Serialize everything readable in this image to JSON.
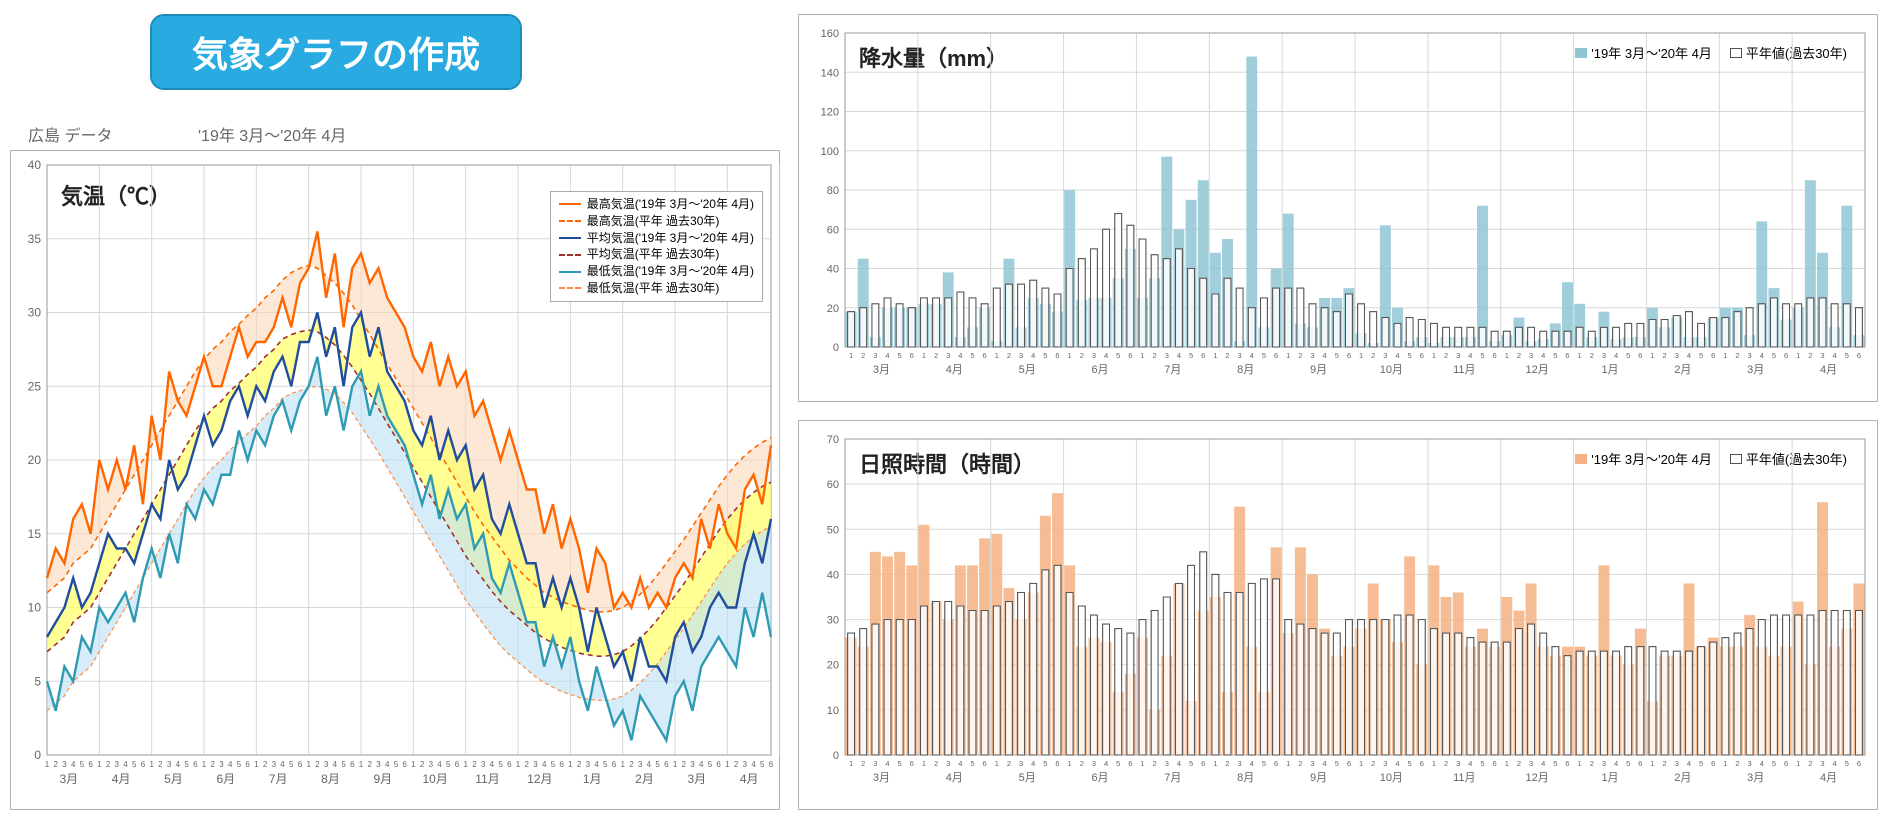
{
  "title_badge": "気象グラフの作成",
  "data_source": "広島 データ",
  "period": "'19年  3月～'20年  4月",
  "months": [
    "3月",
    "4月",
    "5月",
    "6月",
    "7月",
    "8月",
    "9月",
    "10月",
    "11月",
    "12月",
    "1月",
    "2月",
    "3月",
    "4月"
  ],
  "sub_ticks": [
    "1",
    "2",
    "3",
    "4",
    "5",
    "6"
  ],
  "temp_chart": {
    "type": "line",
    "title": "気温（℃）",
    "ylim": [
      0,
      40
    ],
    "ytick_step": 5,
    "background": "#ffffff",
    "grid_color": "#d8d8d8",
    "axis_color": "#808080",
    "tick_font_size": 10,
    "fill_above_avg_color": "#ffff66",
    "fill_above_avg_opacity": 0.7,
    "fill_below_low_color": "#bcdff5",
    "fill_below_low_opacity": 0.6,
    "fill_max_gap_color": "#fcd5b4",
    "fill_max_gap_opacity": 0.55,
    "series": {
      "max_cur": {
        "color": "#ff6600",
        "width": 2.4,
        "dash": "none",
        "label": "最高気温('19年  3月～'20年  4月)"
      },
      "max_norm": {
        "color": "#ff6600",
        "width": 1.6,
        "dash": "5,4",
        "label": "最高気温(平年  過去30年)"
      },
      "avg_cur": {
        "color": "#1f4e9c",
        "width": 2.4,
        "dash": "none",
        "label": "平均気温('19年  3月～'20年  4月)"
      },
      "avg_norm": {
        "color": "#a03030",
        "width": 1.6,
        "dash": "5,4",
        "label": "平均気温(平年  過去30年)"
      },
      "low_cur": {
        "color": "#2e9bb3",
        "width": 2.4,
        "dash": "none",
        "label": "最低気温('19年  3月～'20年  4月)"
      },
      "low_norm": {
        "color": "#ff8c42",
        "width": 1.2,
        "dash": "4,3",
        "label": "最低気温(平年  過去30年)"
      }
    },
    "data": {
      "max_cur": [
        12,
        14,
        13,
        16,
        17,
        15,
        20,
        18,
        20,
        18,
        21,
        17,
        23,
        20,
        26,
        24,
        23,
        25,
        27,
        25,
        25,
        27,
        29,
        27,
        28,
        28,
        29,
        31,
        29,
        32,
        33,
        35.5,
        31,
        34,
        29,
        33,
        34,
        32,
        33,
        31,
        30,
        29,
        27,
        26,
        28,
        25,
        27,
        25,
        26,
        23,
        24,
        22,
        20,
        22,
        20,
        18,
        18,
        15,
        17,
        14,
        16,
        14,
        11,
        14,
        13,
        10,
        11,
        10,
        12,
        10,
        11,
        10,
        12,
        13,
        12,
        16,
        14,
        17,
        15,
        14,
        18,
        19,
        17,
        21
      ],
      "max_norm": [
        11,
        11.5,
        12,
        13,
        13.5,
        14,
        15,
        16,
        17,
        18,
        19,
        20,
        21,
        22,
        23,
        24,
        25,
        26,
        26.8,
        27.5,
        28,
        28.7,
        29.2,
        29.8,
        30.3,
        31,
        31.5,
        32.2,
        32.7,
        33,
        33.2,
        33,
        32.5,
        32,
        31.3,
        30.5,
        29.5,
        28.5,
        27.5,
        26.5,
        25.5,
        24.5,
        23.5,
        22.5,
        21.5,
        20.5,
        19.5,
        18.5,
        17.5,
        16.5,
        15.6,
        14.8,
        14,
        13.2,
        12.6,
        12,
        11.5,
        11,
        10.7,
        10.4,
        10.2,
        10,
        9.8,
        9.7,
        9.7,
        9.8,
        10,
        10.4,
        10.9,
        11.5,
        12.2,
        13,
        13.8,
        14.6,
        15.5,
        16.4,
        17.3,
        18.2,
        19,
        19.7,
        20.3,
        20.8,
        21.2,
        21.5
      ],
      "avg_cur": [
        8,
        9,
        10,
        12,
        10,
        11,
        13,
        15,
        14,
        14,
        13,
        15,
        17,
        16,
        20,
        18,
        19,
        21,
        23,
        21,
        22,
        24,
        25,
        23,
        25,
        24,
        26,
        27,
        25,
        28,
        28,
        30,
        27,
        29,
        25,
        29,
        30,
        27,
        29,
        26,
        25,
        24,
        22,
        21,
        23,
        20,
        22,
        20,
        21,
        18,
        19,
        16,
        15,
        17,
        15,
        13,
        13,
        10,
        12,
        10,
        12,
        10,
        7,
        10,
        8,
        6,
        7,
        5,
        8,
        6,
        6,
        5,
        8,
        9,
        7,
        8,
        10,
        11,
        10,
        10,
        13,
        15,
        13,
        16
      ],
      "avg_norm": [
        7,
        7.5,
        8,
        9,
        9.5,
        10,
        11,
        12,
        13,
        14,
        15,
        16,
        17,
        18,
        19,
        20,
        21,
        22,
        22.8,
        23.5,
        24,
        24.7,
        25.2,
        25.8,
        26.3,
        27,
        27.5,
        28.2,
        28.5,
        28.7,
        28.8,
        28.7,
        28.3,
        27.8,
        27.1,
        26.3,
        25.4,
        24.5,
        23.5,
        22.5,
        21.5,
        20.5,
        19.5,
        18.5,
        17.5,
        16.5,
        15.5,
        14.5,
        13.5,
        12.7,
        11.9,
        11.1,
        10.4,
        9.8,
        9.3,
        8.8,
        8.3,
        7.9,
        7.6,
        7.3,
        7.1,
        6.9,
        6.8,
        6.7,
        6.7,
        6.8,
        7,
        7.4,
        7.9,
        8.5,
        9.2,
        10,
        10.8,
        11.6,
        12.5,
        13.4,
        14.3,
        15.2,
        16,
        16.7,
        17.3,
        17.8,
        18.2,
        18.5
      ],
      "low_cur": [
        5,
        3,
        6,
        5,
        8,
        7,
        10,
        9,
        10,
        11,
        9,
        12,
        14,
        12,
        15,
        13,
        17,
        16,
        18,
        17,
        19,
        19,
        22,
        20,
        22,
        21,
        23,
        24,
        22,
        24,
        25,
        27,
        23,
        25,
        22,
        25,
        26,
        23,
        25,
        23,
        22,
        21,
        19,
        17,
        19,
        16,
        18,
        16,
        17,
        14,
        15,
        12,
        11,
        13,
        11,
        9,
        9,
        6,
        8,
        6,
        8,
        5,
        3,
        6,
        4,
        2,
        3,
        1,
        4,
        3,
        2,
        1,
        4,
        5,
        3,
        6,
        7,
        8,
        7,
        6,
        10,
        8,
        11,
        8
      ],
      "low_norm": [
        3,
        3.5,
        4,
        5,
        5.5,
        6,
        7,
        8,
        9,
        10,
        11,
        12,
        13,
        14,
        15,
        16,
        17,
        18,
        18.8,
        19.5,
        20,
        20.7,
        21.2,
        21.8,
        22.3,
        23,
        23.5,
        24.2,
        24.5,
        24.7,
        24.9,
        25,
        24.8,
        24.5,
        23.9,
        23.2,
        22.3,
        21.4,
        20.5,
        19.5,
        18.5,
        17.5,
        16.5,
        15.5,
        14.5,
        13.5,
        12.5,
        11.5,
        10.5,
        9.7,
        8.9,
        8.1,
        7.4,
        6.8,
        6.3,
        5.8,
        5.3,
        4.9,
        4.6,
        4.3,
        4.1,
        3.9,
        3.8,
        3.7,
        3.7,
        3.8,
        4,
        4.4,
        4.9,
        5.5,
        6.2,
        7,
        7.8,
        8.6,
        9.5,
        10.4,
        11.3,
        12.2,
        13,
        13.7,
        14.3,
        14.8,
        15.2,
        15.5
      ]
    }
  },
  "precip_chart": {
    "type": "bar",
    "title": "降水量（mm）",
    "ylim": [
      0,
      160
    ],
    "ytick_step": 20,
    "grid_color": "#d8d8d8",
    "bar_color": "#8fc6d4",
    "bar_opacity": 0.85,
    "norm_outline": "#555555",
    "norm_fill": "none",
    "legend_cur": "'19年  3月～'20年  4月",
    "legend_norm": "平年値(過去30年)",
    "current": [
      18,
      45,
      5,
      20,
      20,
      20,
      22,
      22,
      38,
      5,
      10,
      20,
      3,
      45,
      10,
      25,
      22,
      18,
      80,
      24,
      25,
      25,
      35,
      50,
      25,
      35,
      97,
      60,
      75,
      85,
      48,
      55,
      3,
      148,
      10,
      40,
      68,
      12,
      10,
      25,
      25,
      30,
      7,
      2,
      62,
      20,
      3,
      5,
      2,
      5,
      5,
      5,
      72,
      3,
      6,
      15,
      3,
      4,
      12,
      33,
      22,
      5,
      18,
      4,
      5,
      5,
      20,
      10,
      15,
      5,
      5,
      15,
      20,
      20,
      6,
      64,
      30,
      14,
      20,
      85,
      48,
      10,
      72,
      6
    ],
    "normal": [
      18,
      20,
      22,
      25,
      22,
      20,
      25,
      25,
      25,
      28,
      25,
      22,
      30,
      32,
      32,
      34,
      30,
      27,
      40,
      45,
      50,
      60,
      68,
      62,
      55,
      47,
      45,
      50,
      40,
      35,
      27,
      35,
      30,
      20,
      25,
      30,
      30,
      30,
      22,
      20,
      18,
      27,
      22,
      18,
      15,
      12,
      15,
      14,
      12,
      10,
      10,
      10,
      10,
      8,
      8,
      10,
      10,
      8,
      8,
      8,
      10,
      8,
      10,
      10,
      12,
      12,
      14,
      14,
      16,
      18,
      12,
      15,
      15,
      18,
      20,
      22,
      25,
      22,
      22,
      25,
      25,
      22,
      22,
      20
    ]
  },
  "sun_chart": {
    "type": "bar",
    "title": "日照時間（時間）",
    "ylim": [
      0,
      70
    ],
    "ytick_step": 10,
    "grid_color": "#d8d8d8",
    "bar_color": "#f4b183",
    "bar_opacity": 0.85,
    "norm_outline": "#555555",
    "norm_fill": "none",
    "legend_cur": "'19年  3月～'20年  4月",
    "legend_norm": "平年値(過去30年)",
    "current": [
      26,
      24,
      45,
      44,
      45,
      42,
      51,
      34,
      30,
      42,
      42,
      48,
      49,
      37,
      30,
      36,
      53,
      58,
      42,
      24,
      26,
      25,
      14,
      18,
      26,
      10,
      22,
      38,
      12,
      32,
      35,
      14,
      55,
      24,
      14,
      46,
      27,
      46,
      40,
      28,
      22,
      24,
      28,
      38,
      30,
      25,
      44,
      20,
      42,
      35,
      36,
      24,
      28,
      24,
      35,
      32,
      38,
      24,
      22,
      24,
      24,
      22,
      42,
      22,
      20,
      28,
      12,
      22,
      22,
      38,
      24,
      26,
      24,
      24,
      31,
      24,
      22,
      24,
      34,
      20,
      56,
      24,
      28,
      38
    ],
    "normal": [
      27,
      28,
      29,
      30,
      30,
      30,
      33,
      34,
      34,
      33,
      32,
      32,
      33,
      34,
      36,
      38,
      41,
      42,
      36,
      33,
      31,
      29,
      28,
      27,
      30,
      32,
      35,
      38,
      42,
      45,
      40,
      36,
      36,
      38,
      39,
      39,
      30,
      29,
      28,
      27,
      27,
      30,
      30,
      30,
      30,
      31,
      31,
      30,
      28,
      27,
      27,
      26,
      25,
      25,
      25,
      28,
      29,
      27,
      24,
      22,
      23,
      23,
      23,
      23,
      24,
      24,
      24,
      23,
      23,
      23,
      24,
      25,
      26,
      27,
      28,
      30,
      31,
      31,
      31,
      31,
      32,
      32,
      32,
      32
    ]
  }
}
